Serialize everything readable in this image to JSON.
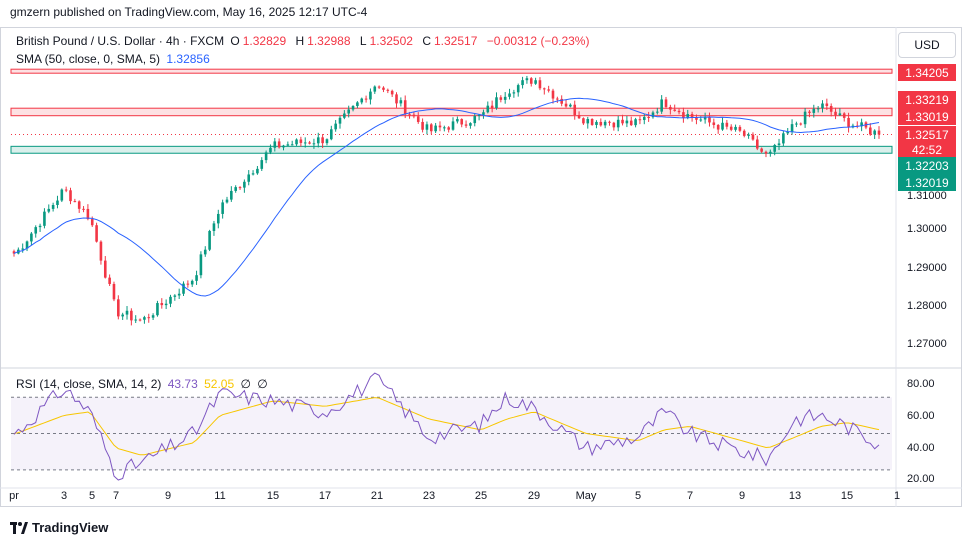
{
  "publisher": "gmzern published on TradingView.com, May 16, 2025 12:17 UTC-4",
  "brand": "TradingView",
  "currency_button": "USD",
  "legend": {
    "symbol": "British Pound / U.S. Dollar · 4h · FXCM",
    "o_label": "O",
    "o": "1.32829",
    "h_label": "H",
    "h": "1.32988",
    "l_label": "L",
    "l": "1.32502",
    "c_label": "C",
    "c": "1.32517",
    "change": "−0.00312 (−0.23%)",
    "sma_label": "SMA (50, close, 0, SMA, 5)",
    "sma_value": "1.32856",
    "rsi_label": "RSI (14, close, SMA, 14, 2)",
    "rsi_value": "43.73",
    "rsi_ma_value": "52.05",
    "rsi_extra1": "∅",
    "rsi_extra2": "∅"
  },
  "colors": {
    "up": "#089981",
    "down": "#f23645",
    "sma": "#2962ff",
    "rsi": "#7e57c2",
    "rsi_ma": "#f7c600",
    "resistance": "#f23645",
    "support": "#089981"
  },
  "price_tags": {
    "r1": "1.34205",
    "r2": "1.33219",
    "r3": "1.33019",
    "last": "1.32517",
    "countdown": "42:52",
    "s1": "1.32203",
    "s2": "1.32019"
  },
  "chart_data": [
    {
      "type": "candlestick",
      "title": "British Pound / U.S. Dollar · 4h · FXCM",
      "y_ticks": [
        "1.31000",
        "1.30000",
        "1.29000",
        "1.28000",
        "1.27000"
      ],
      "x_ticks": [
        "pr",
        "3",
        "5",
        "7",
        "9",
        "11",
        "15",
        "17",
        "21",
        "23",
        "25",
        "29",
        "May",
        "5",
        "7",
        "9",
        "13",
        "15",
        "1"
      ],
      "ylim": [
        1.2635,
        1.3445
      ],
      "close_anchor_dates": [
        "Apr 1",
        "Apr 3",
        "Apr 4",
        "Apr 7",
        "Apr 8",
        "Apr 10",
        "Apr 11",
        "Apr 15",
        "Apr 17",
        "Apr 21",
        "Apr 23",
        "Apr 25",
        "Apr 28",
        "Apr 29",
        "May 1",
        "May 5",
        "May 6",
        "May 7",
        "May 9",
        "May 12",
        "May 13",
        "May 14",
        "May 15",
        "May 16"
      ],
      "close_anchors": [
        1.2935,
        1.3105,
        1.303,
        1.278,
        1.2755,
        1.287,
        1.306,
        1.322,
        1.324,
        1.339,
        1.326,
        1.33,
        1.337,
        1.34,
        1.329,
        1.328,
        1.334,
        1.33,
        1.3255,
        1.319,
        1.328,
        1.333,
        1.3285,
        1.3252
      ],
      "series": [
        {
          "name": "SMA (50, close, 0, SMA, 5)",
          "last_value": 1.32856
        }
      ],
      "horizontal_levels": {
        "resistance": [
          1.34205,
          1.33219,
          1.33019
        ],
        "support": [
          1.32203,
          1.32019
        ],
        "last_close": 1.32517
      }
    },
    {
      "type": "line",
      "title": "RSI (14, close, SMA, 14, 2)",
      "y_ticks": [
        "80.00",
        "60.00",
        "40.00",
        "20.00"
      ],
      "ylim": [
        20,
        85
      ],
      "bands": [
        70,
        50,
        30
      ],
      "anchor_dates": [
        "Apr 1",
        "Apr 3",
        "Apr 4",
        "Apr 7",
        "Apr 8",
        "Apr 10",
        "Apr 11",
        "Apr 15",
        "Apr 17",
        "Apr 21",
        "Apr 23",
        "Apr 25",
        "Apr 28",
        "Apr 29",
        "May 1",
        "May 5",
        "May 6",
        "May 7",
        "May 9",
        "May 12",
        "May 13",
        "May 14",
        "May 15",
        "May 16"
      ],
      "series": [
        {
          "name": "RSI",
          "last_value": 43.73,
          "anchors": [
            50,
            75,
            62,
            28,
            34,
            50,
            72,
            68,
            62,
            80,
            48,
            55,
            70,
            64,
            42,
            48,
            62,
            50,
            40,
            36,
            58,
            60,
            54,
            43.73
          ]
        },
        {
          "name": "RSI MA",
          "last_value": 52.05,
          "anchors": [
            50,
            60,
            62,
            42,
            38,
            45,
            60,
            68,
            65,
            70,
            58,
            52,
            58,
            62,
            50,
            46,
            52,
            54,
            46,
            42,
            48,
            54,
            56,
            52.05
          ]
        }
      ]
    }
  ]
}
